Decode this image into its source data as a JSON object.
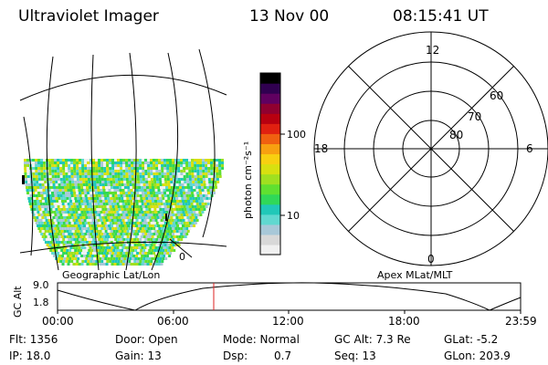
{
  "header": {
    "instrument": "Ultraviolet Imager",
    "date": "13 Nov 00",
    "time": "08:15:41 UT"
  },
  "colorbar": {
    "unit_label": "photon cm⁻²s⁻¹",
    "ticks": [
      "100",
      "10"
    ],
    "colors": [
      "#f0f0f0",
      "#d8d8d8",
      "#a8c8d8",
      "#60d8d0",
      "#20c8b8",
      "#30d858",
      "#60e030",
      "#a0e020",
      "#d8e010",
      "#f8d010",
      "#f8a010",
      "#f06010",
      "#e02010",
      "#b80010",
      "#900030",
      "#600060",
      "#300050",
      "#000000"
    ]
  },
  "geo_panel": {
    "caption": "Geographic Lat/Lon",
    "tick_label": "0"
  },
  "polar_plot": {
    "caption": "Apex MLat/MLT",
    "mlt_labels": {
      "top": "12",
      "left": "18",
      "right": "6",
      "bottom": "0"
    },
    "lat_labels": [
      "60",
      "70",
      "80"
    ]
  },
  "altitude_plot": {
    "ylabel": "GC Alt",
    "yticks": [
      "9.0",
      "1.8"
    ],
    "xticks": [
      "00:00",
      "06:00",
      "12:00",
      "18:00",
      "23:59"
    ],
    "marker_color": "#dd2222"
  },
  "status": {
    "flt": "Flt: 1356",
    "ip": "IP: 18.0",
    "door": "Door: Open",
    "gain": "Gain: 13",
    "mode": "Mode: Normal",
    "dsp_label": "Dsp:",
    "dsp_value": "0.7",
    "gc_alt": "GC Alt: 7.3 Re",
    "seq": "Seq: 13",
    "glat": "GLat:  -5.2",
    "glon": "GLon: 203.9"
  }
}
